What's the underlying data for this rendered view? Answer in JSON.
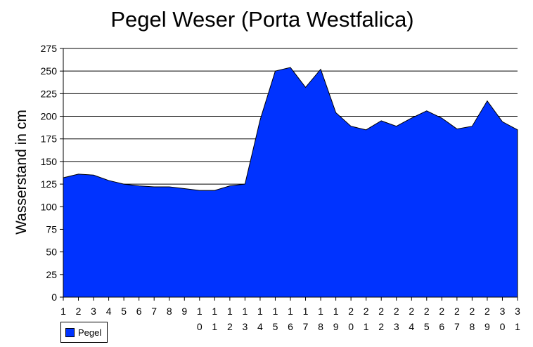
{
  "chart_data": {
    "type": "area",
    "title": "Pegel Weser (Porta Westfalica)",
    "xlabel": "",
    "ylabel": "Wasserstand in cm",
    "ylim": [
      0,
      275
    ],
    "yticks": [
      0,
      25,
      50,
      75,
      100,
      125,
      150,
      175,
      200,
      225,
      250,
      275
    ],
    "grid": true,
    "legend_position": "bottom-left",
    "fill_color": "#0033ff",
    "x": [
      "1",
      "2",
      "3",
      "4",
      "5",
      "6",
      "7",
      "8",
      "9",
      "10",
      "11",
      "12",
      "13",
      "14",
      "15",
      "16",
      "17",
      "18",
      "19",
      "20",
      "21",
      "22",
      "23",
      "24",
      "25",
      "26",
      "27",
      "28",
      "29",
      "30",
      "31"
    ],
    "series": [
      {
        "name": "Pegel",
        "values": [
          132,
          136,
          135,
          129,
          125,
          123,
          122,
          122,
          120,
          118,
          118,
          123,
          125,
          196,
          250,
          254,
          232,
          252,
          204,
          189,
          185,
          195,
          189,
          198,
          206,
          198,
          186,
          189,
          217,
          194,
          185
        ]
      }
    ]
  }
}
